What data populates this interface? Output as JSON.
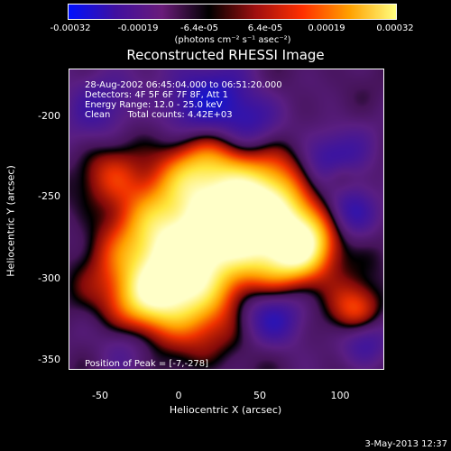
{
  "colorbar": {
    "ticks": [
      "-0.00032",
      "-0.00019",
      "-6.4e-05",
      "6.4e-05",
      "0.00019",
      "0.00032"
    ],
    "unit": "(photons cm⁻² s⁻¹ asec⁻²)",
    "colors": [
      "#0010ff",
      "#4010a0",
      "#6a1c7a",
      "#000000",
      "#a01010",
      "#ff3000",
      "#ffa000",
      "#ffff80"
    ]
  },
  "title": "Reconstructed RHESSI Image",
  "info": {
    "line1": "28-Aug-2002 06:45:04.000 to 06:51:20.000",
    "line2": "Detectors: 4F 5F 6F 7F 8F, Att 1",
    "line3": "Energy Range: 12.0 - 25.0 keV",
    "line4": "Clean      Total counts: 4.42E+03"
  },
  "peak_text": "Position of Peak = [-7,-278]",
  "x_axis": {
    "label": "Heliocentric X (arcsec)",
    "ticks": [
      "-50",
      "0",
      "50",
      "100"
    ]
  },
  "y_axis": {
    "label": "Heliocentric Y (arcsec)",
    "ticks": [
      "-200",
      "-250",
      "-300",
      "-350"
    ]
  },
  "timestamp": "3-May-2013 12:37"
}
